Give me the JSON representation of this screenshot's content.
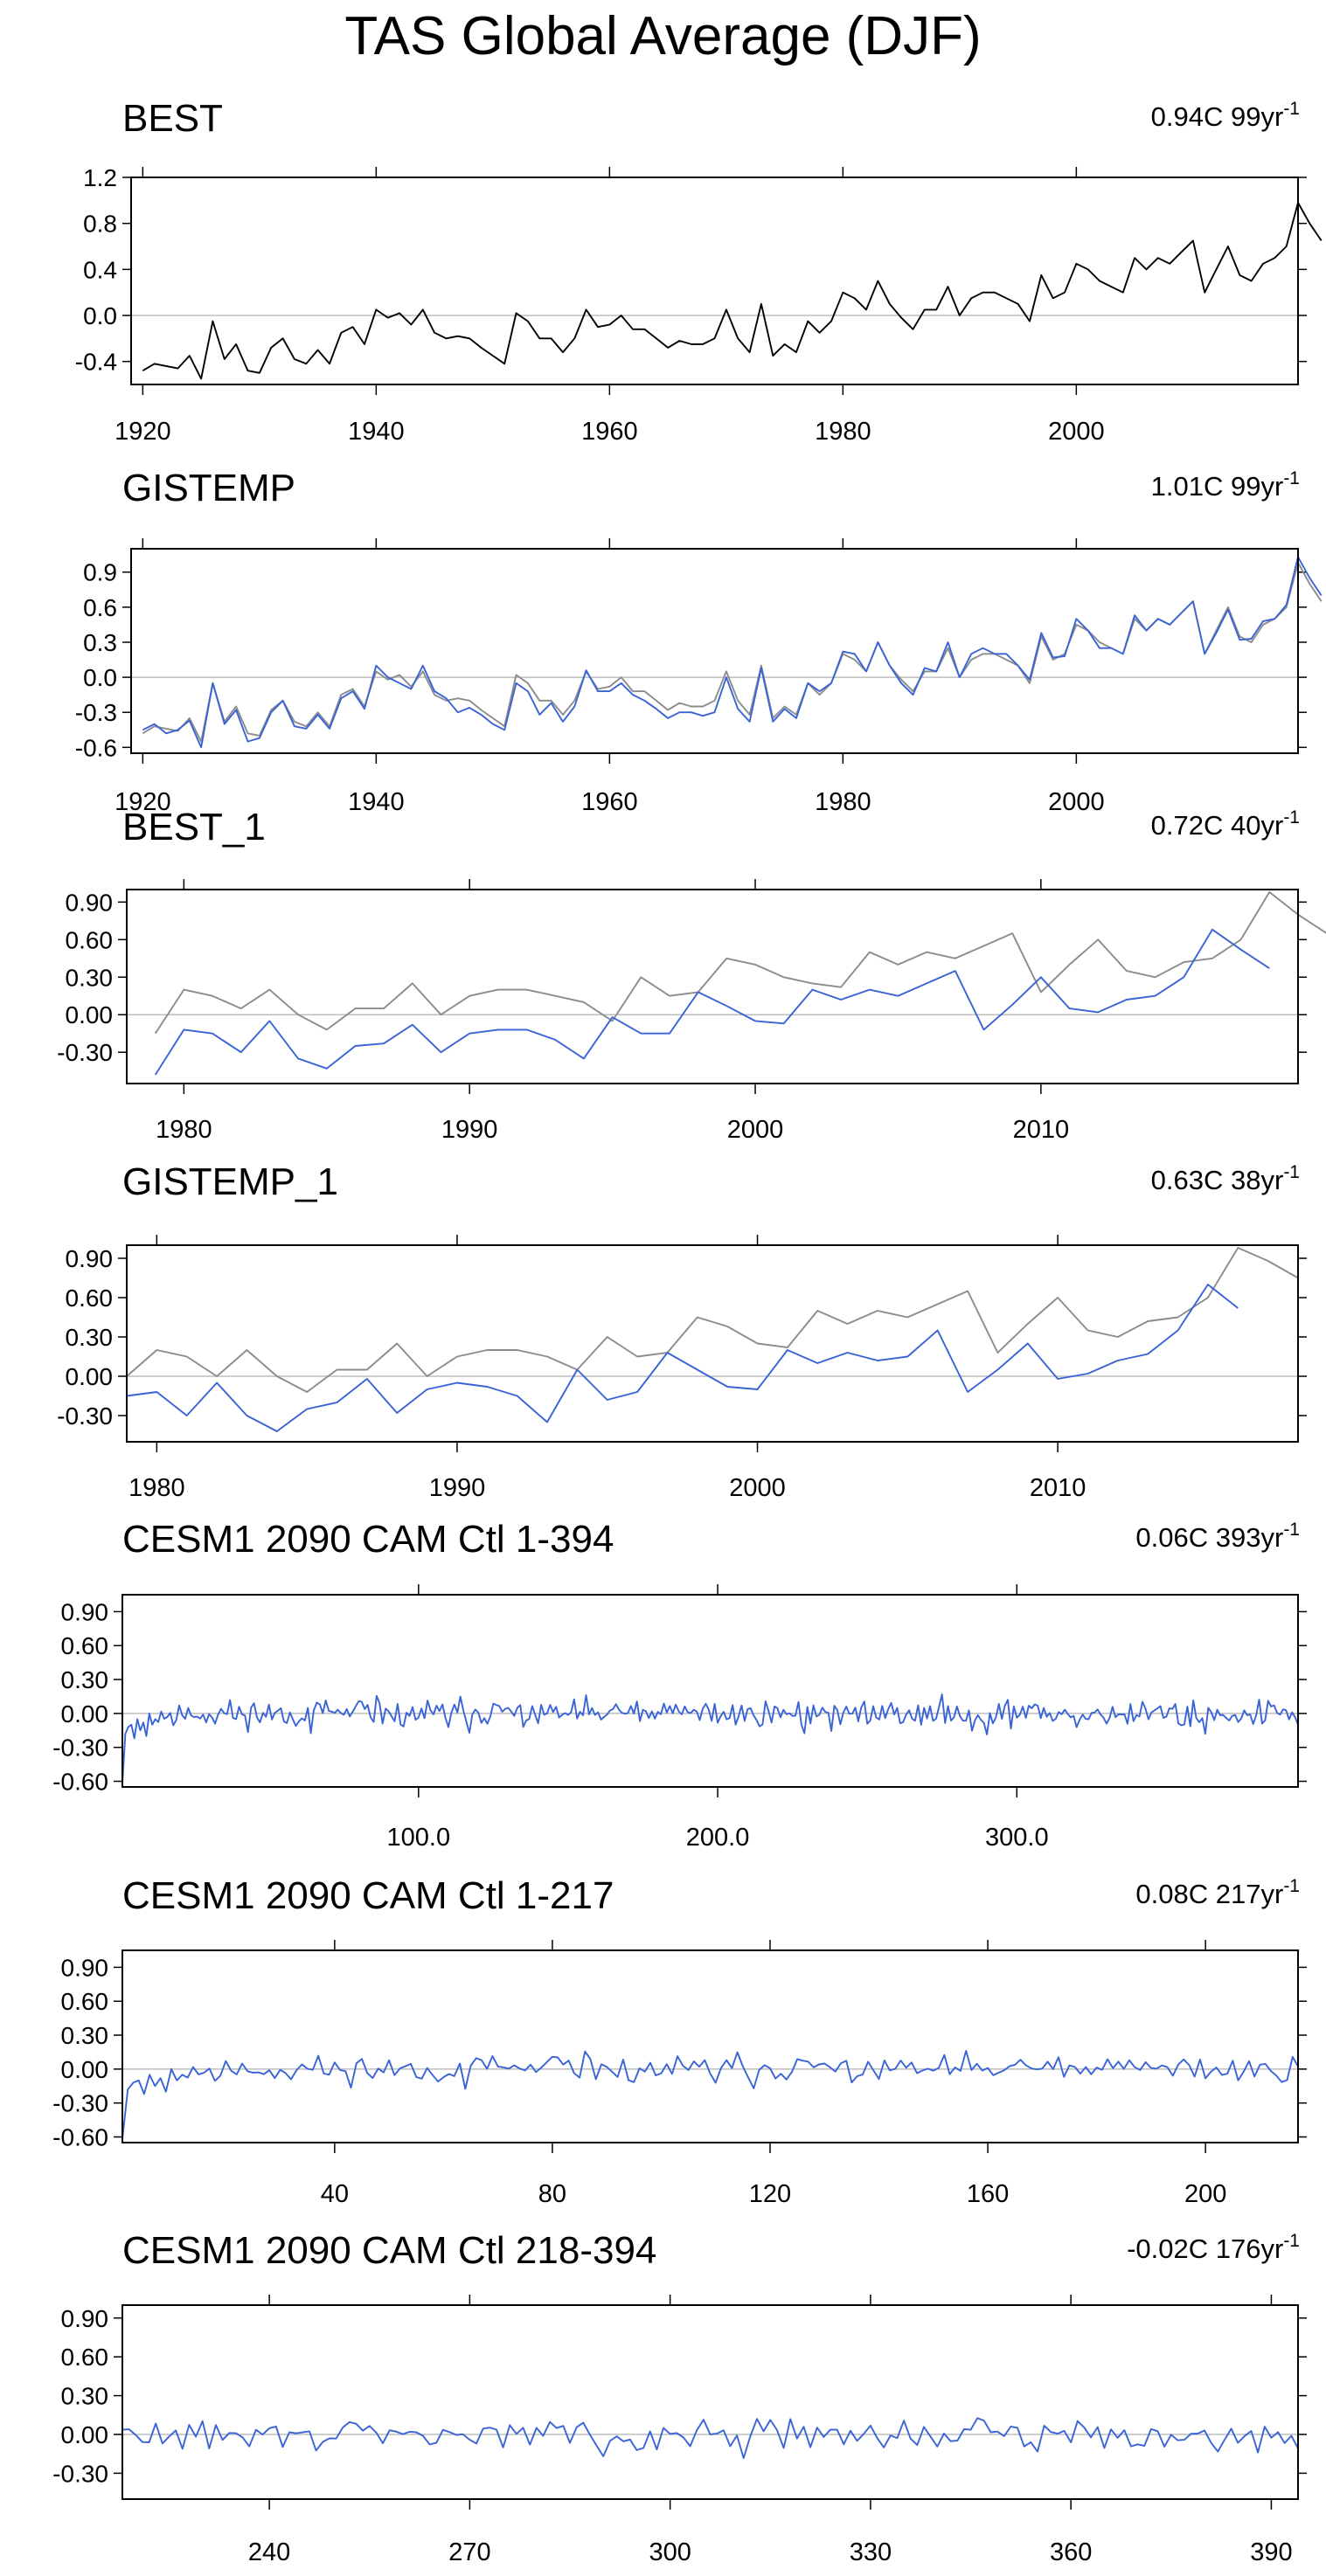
{
  "title": "TAS Global Average (DJF)",
  "colors": {
    "obs": "#000000",
    "reference": "#8c8c8c",
    "model": "#3a63d6",
    "zero_line": "#bdbdbd"
  },
  "panels": [
    {
      "label": "BEST",
      "trend_value": "0.94C 99yr",
      "trend_exp": "-1",
      "xlim": [
        1919,
        2019
      ],
      "ylim": [
        -0.6,
        1.2
      ],
      "yticks": [
        -0.4,
        0.0,
        0.4,
        0.8,
        1.2
      ],
      "ytick_decimals": 1,
      "xticks": [
        1920,
        1940,
        1960,
        1980,
        2000
      ],
      "xtick_format": "int",
      "x_start": 1920,
      "series": [
        {
          "name": "BEST",
          "color_key": "obs",
          "values": [
            -0.48,
            -0.42,
            -0.44,
            -0.46,
            -0.35,
            -0.55,
            -0.05,
            -0.38,
            -0.25,
            -0.48,
            -0.5,
            -0.28,
            -0.2,
            -0.38,
            -0.42,
            -0.3,
            -0.42,
            -0.15,
            -0.1,
            -0.25,
            0.05,
            -0.02,
            0.02,
            -0.08,
            0.05,
            -0.15,
            -0.2,
            -0.18,
            -0.2,
            -0.28,
            -0.35,
            -0.42,
            0.02,
            -0.05,
            -0.2,
            -0.2,
            -0.32,
            -0.2,
            0.05,
            -0.1,
            -0.08,
            0.0,
            -0.12,
            -0.12,
            -0.2,
            -0.28,
            -0.22,
            -0.25,
            -0.25,
            -0.2,
            0.05,
            -0.2,
            -0.32,
            0.1,
            -0.35,
            -0.25,
            -0.32,
            -0.05,
            -0.15,
            -0.05,
            0.2,
            0.15,
            0.05,
            0.3,
            0.1,
            -0.02,
            -0.12,
            0.05,
            0.05,
            0.25,
            0.0,
            0.15,
            0.2,
            0.2,
            0.15,
            0.1,
            -0.05,
            0.35,
            0.15,
            0.2,
            0.45,
            0.4,
            0.3,
            0.25,
            0.2,
            0.5,
            0.4,
            0.5,
            0.45,
            0.55,
            0.65,
            0.2,
            0.4,
            0.6,
            0.35,
            0.3,
            0.45,
            0.5,
            0.6,
            0.98,
            0.8,
            0.65
          ]
        }
      ]
    },
    {
      "label": "GISTEMP",
      "trend_value": "1.01C 99yr",
      "trend_exp": "-1",
      "xlim": [
        1919,
        2019
      ],
      "ylim": [
        -0.65,
        1.1
      ],
      "yticks": [
        -0.6,
        -0.3,
        0.0,
        0.3,
        0.6,
        0.9
      ],
      "ytick_decimals": 1,
      "xticks": [
        1920,
        1940,
        1960,
        1980,
        2000
      ],
      "xtick_format": "int",
      "x_start": 1920,
      "series": [
        {
          "name": "BEST",
          "color_key": "reference",
          "values": [
            -0.48,
            -0.42,
            -0.44,
            -0.46,
            -0.35,
            -0.55,
            -0.05,
            -0.38,
            -0.25,
            -0.48,
            -0.5,
            -0.28,
            -0.2,
            -0.38,
            -0.42,
            -0.3,
            -0.42,
            -0.15,
            -0.1,
            -0.25,
            0.05,
            -0.02,
            0.02,
            -0.08,
            0.05,
            -0.15,
            -0.2,
            -0.18,
            -0.2,
            -0.28,
            -0.35,
            -0.42,
            0.02,
            -0.05,
            -0.2,
            -0.2,
            -0.32,
            -0.2,
            0.05,
            -0.1,
            -0.08,
            0.0,
            -0.12,
            -0.12,
            -0.2,
            -0.28,
            -0.22,
            -0.25,
            -0.25,
            -0.2,
            0.05,
            -0.2,
            -0.32,
            0.1,
            -0.35,
            -0.25,
            -0.32,
            -0.05,
            -0.15,
            -0.05,
            0.2,
            0.15,
            0.05,
            0.3,
            0.1,
            -0.02,
            -0.12,
            0.05,
            0.05,
            0.25,
            0.0,
            0.15,
            0.2,
            0.2,
            0.15,
            0.1,
            -0.05,
            0.35,
            0.15,
            0.2,
            0.45,
            0.4,
            0.3,
            0.25,
            0.2,
            0.5,
            0.4,
            0.5,
            0.45,
            0.55,
            0.65,
            0.2,
            0.4,
            0.6,
            0.35,
            0.3,
            0.45,
            0.5,
            0.6,
            0.98,
            0.8,
            0.65
          ]
        },
        {
          "name": "GISTEMP",
          "color_key": "model",
          "values": [
            -0.45,
            -0.4,
            -0.48,
            -0.45,
            -0.37,
            -0.6,
            -0.05,
            -0.4,
            -0.28,
            -0.55,
            -0.52,
            -0.3,
            -0.2,
            -0.42,
            -0.44,
            -0.32,
            -0.44,
            -0.18,
            -0.12,
            -0.27,
            0.1,
            0.0,
            -0.05,
            -0.1,
            0.1,
            -0.12,
            -0.18,
            -0.3,
            -0.26,
            -0.32,
            -0.4,
            -0.45,
            -0.05,
            -0.12,
            -0.32,
            -0.22,
            -0.38,
            -0.25,
            0.06,
            -0.12,
            -0.12,
            -0.05,
            -0.15,
            -0.2,
            -0.27,
            -0.35,
            -0.3,
            -0.3,
            -0.33,
            -0.3,
            0.0,
            -0.27,
            -0.38,
            0.08,
            -0.38,
            -0.27,
            -0.35,
            -0.05,
            -0.12,
            -0.05,
            0.22,
            0.2,
            0.05,
            0.3,
            0.1,
            -0.05,
            -0.15,
            0.08,
            0.05,
            0.3,
            0.0,
            0.2,
            0.25,
            0.2,
            0.2,
            0.1,
            -0.02,
            0.38,
            0.17,
            0.18,
            0.5,
            0.4,
            0.25,
            0.25,
            0.2,
            0.53,
            0.4,
            0.5,
            0.45,
            0.55,
            0.65,
            0.2,
            0.38,
            0.58,
            0.32,
            0.33,
            0.48,
            0.5,
            0.62,
            1.03,
            0.85,
            0.7
          ]
        }
      ]
    },
    {
      "label": "BEST_1",
      "trend_value": "0.72C 40yr",
      "trend_exp": "-1",
      "xlim": [
        1978,
        2019
      ],
      "ylim": [
        -0.55,
        1.0
      ],
      "yticks": [
        -0.3,
        0.0,
        0.3,
        0.6,
        0.9
      ],
      "ytick_decimals": 2,
      "xticks": [
        1980,
        1990,
        2000,
        2010
      ],
      "xtick_format": "int",
      "x_start": 1979,
      "series": [
        {
          "name": "BEST",
          "color_key": "reference",
          "values": [
            -0.15,
            0.2,
            0.15,
            0.05,
            0.2,
            0.0,
            -0.12,
            0.05,
            0.05,
            0.25,
            0.0,
            0.15,
            0.2,
            0.2,
            0.15,
            0.1,
            -0.05,
            0.3,
            0.15,
            0.18,
            0.45,
            0.4,
            0.3,
            0.25,
            0.22,
            0.5,
            0.4,
            0.5,
            0.45,
            0.55,
            0.65,
            0.18,
            0.4,
            0.6,
            0.35,
            0.3,
            0.42,
            0.45,
            0.6,
            0.98,
            0.8,
            0.65
          ]
        },
        {
          "name": "BEST_1",
          "color_key": "model",
          "values": [
            -0.48,
            -0.12,
            -0.15,
            -0.3,
            -0.05,
            -0.35,
            -0.43,
            -0.25,
            -0.23,
            -0.08,
            -0.3,
            -0.15,
            -0.12,
            -0.12,
            -0.2,
            -0.35,
            -0.02,
            -0.15,
            -0.15,
            0.18,
            0.07,
            -0.05,
            -0.07,
            0.2,
            0.12,
            0.2,
            0.15,
            0.25,
            0.35,
            -0.12,
            0.08,
            0.3,
            0.05,
            0.02,
            0.12,
            0.15,
            0.3,
            0.68,
            0.52,
            0.37
          ]
        }
      ]
    },
    {
      "label": "GISTEMP_1",
      "trend_value": "0.63C 38yr",
      "trend_exp": "-1",
      "xlim": [
        1979,
        2018
      ],
      "ylim": [
        -0.5,
        1.0
      ],
      "yticks": [
        -0.3,
        0.0,
        0.3,
        0.6,
        0.9
      ],
      "ytick_decimals": 2,
      "xticks": [
        1980,
        1990,
        2000,
        2010
      ],
      "xtick_format": "int",
      "x_start": 1979,
      "series": [
        {
          "name": "BEST",
          "color_key": "reference",
          "values": [
            0.0,
            0.2,
            0.15,
            0.0,
            0.2,
            0.0,
            -0.12,
            0.05,
            0.05,
            0.25,
            0.0,
            0.15,
            0.2,
            0.2,
            0.15,
            0.05,
            0.3,
            0.15,
            0.18,
            0.45,
            0.38,
            0.25,
            0.22,
            0.5,
            0.4,
            0.5,
            0.45,
            0.55,
            0.65,
            0.18,
            0.4,
            0.6,
            0.35,
            0.3,
            0.42,
            0.45,
            0.6,
            0.98,
            0.88,
            0.75
          ]
        },
        {
          "name": "GISTEMP_1",
          "color_key": "model",
          "values": [
            -0.15,
            -0.12,
            -0.3,
            -0.05,
            -0.3,
            -0.42,
            -0.25,
            -0.2,
            -0.02,
            -0.28,
            -0.1,
            -0.05,
            -0.08,
            -0.15,
            -0.35,
            0.05,
            -0.18,
            -0.12,
            0.18,
            0.05,
            -0.08,
            -0.1,
            0.2,
            0.1,
            0.18,
            0.12,
            0.15,
            0.35,
            -0.12,
            0.05,
            0.25,
            -0.02,
            0.02,
            0.12,
            0.17,
            0.35,
            0.7,
            0.52
          ]
        }
      ]
    },
    {
      "label": "CESM1 2090 CAM Ctl 1-394",
      "trend_value": "0.06C 393yr",
      "trend_exp": "-1",
      "xlim": [
        1,
        394
      ],
      "ylim": [
        -0.65,
        1.05
      ],
      "yticks": [
        -0.6,
        -0.3,
        0.0,
        0.3,
        0.6,
        0.9
      ],
      "ytick_decimals": 2,
      "xticks": [
        100,
        200,
        300
      ],
      "xtick_format": "one_decimal",
      "x_start": 1,
      "noise": {
        "seed": 11,
        "length": 394,
        "amplitude": 0.06,
        "spin_up": [
          -0.62,
          -0.18,
          -0.12,
          -0.1,
          -0.22,
          -0.05,
          -0.15,
          -0.08,
          -0.2,
          0.0,
          -0.1,
          -0.05
        ]
      },
      "series": [
        {
          "name": "CESM1 2090 CAM Ctl",
          "color_key": "model",
          "values": []
        }
      ]
    },
    {
      "label": "CESM1 2090 CAM Ctl 1-217",
      "trend_value": "0.08C 217yr",
      "trend_exp": "-1",
      "xlim": [
        1,
        217
      ],
      "ylim": [
        -0.65,
        1.05
      ],
      "yticks": [
        -0.6,
        -0.3,
        0.0,
        0.3,
        0.6,
        0.9
      ],
      "ytick_decimals": 2,
      "xticks": [
        40,
        80,
        120,
        160,
        200
      ],
      "xtick_format": "int",
      "x_start": 1,
      "noise": {
        "seed": 11,
        "length": 217,
        "amplitude": 0.06,
        "spin_up": [
          -0.62,
          -0.18,
          -0.12,
          -0.1,
          -0.22,
          -0.05,
          -0.15,
          -0.08,
          -0.2,
          0.0,
          -0.1,
          -0.05
        ]
      },
      "series": [
        {
          "name": "CESM1 2090 CAM Ctl",
          "color_key": "model",
          "values": []
        }
      ]
    },
    {
      "label": "CESM1 2090 CAM Ctl 218-394",
      "trend_value": "-0.02C 176yr",
      "trend_exp": "-1",
      "xlim": [
        218,
        394
      ],
      "ylim": [
        -0.5,
        1.0
      ],
      "yticks": [
        -0.3,
        0.0,
        0.3,
        0.6,
        0.9
      ],
      "ytick_decimals": 2,
      "xticks": [
        240,
        270,
        300,
        330,
        360,
        390
      ],
      "xtick_format": "int",
      "x_start": 218,
      "noise": {
        "seed": 29,
        "length": 177,
        "amplitude": 0.055,
        "spin_up": []
      },
      "series": [
        {
          "name": "CESM1 2090 CAM Ctl",
          "color_key": "model",
          "values": []
        }
      ]
    }
  ]
}
